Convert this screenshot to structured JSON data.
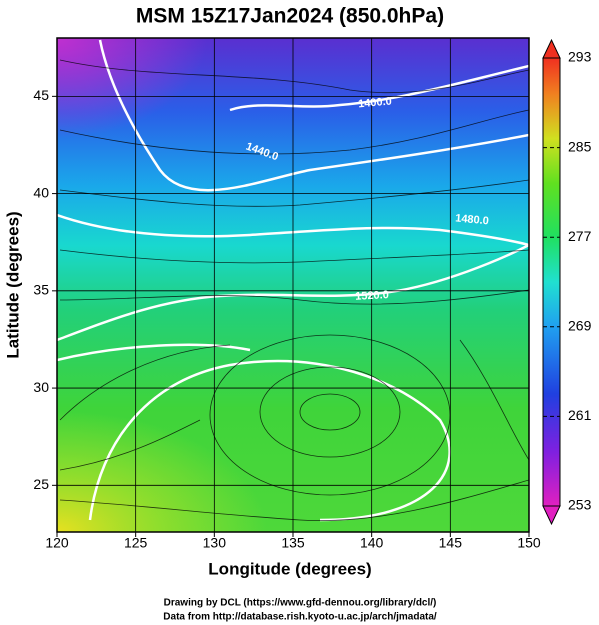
{
  "chart_data": {
    "type": "map",
    "title": "MSM 15Z17Jan2024 (850.0hPa)",
    "x_label": "Longitude (degrees)",
    "y_label": "Latitude  (degrees)",
    "xlim": [
      120,
      150
    ],
    "xticks": [
      120,
      125,
      130,
      135,
      140,
      145,
      150
    ],
    "ylim": [
      22.6,
      48
    ],
    "yticks": [
      25,
      30,
      35,
      40,
      45
    ],
    "grid": true,
    "colorbar_lim": [
      253,
      293
    ],
    "colorbar_ticks": [
      253,
      261,
      269,
      277,
      285,
      293
    ],
    "contour_labels": [
      "1400.0",
      "1440.0",
      "1480.0",
      "1520.0"
    ],
    "credits": [
      "Drawing by DCL (https://www.gfd-dennou.org/library/dcl/)",
      "Data from http://database.rish.kyoto-u.ac.jp/arch/jmadata/"
    ]
  }
}
